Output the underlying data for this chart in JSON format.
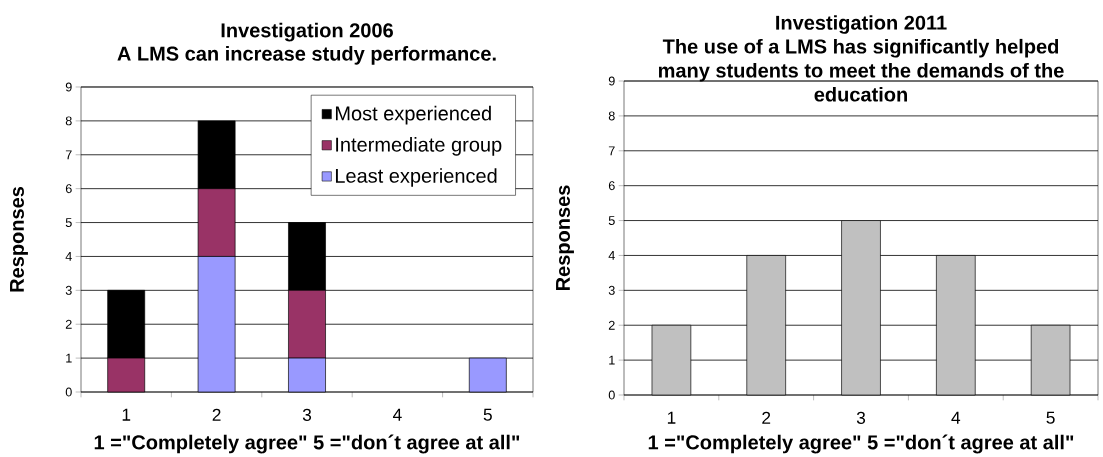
{
  "chart_data": [
    {
      "type": "bar",
      "stacked": true,
      "title": "Investigation 2006",
      "subtitle": "A LMS can increase study performance.",
      "xlabel": "1 =\"Completely agree\" 5 =\"don´t agree at all\"",
      "ylabel": "Responses",
      "categories": [
        "1",
        "2",
        "3",
        "4",
        "5"
      ],
      "series": [
        {
          "name": "Least experienced",
          "color": "#9999ff",
          "values": [
            0,
            4,
            1,
            0,
            1
          ]
        },
        {
          "name": "Intermediate group",
          "color": "#993366",
          "values": [
            1,
            2,
            2,
            0,
            0
          ]
        },
        {
          "name": "Most experienced",
          "color": "#000000",
          "values": [
            2,
            2,
            2,
            0,
            0
          ]
        }
      ],
      "ylim": [
        0,
        9
      ],
      "yticks": [
        0,
        1,
        2,
        3,
        4,
        5,
        6,
        7,
        8,
        9
      ],
      "grid": "y",
      "legend": "top right"
    },
    {
      "type": "bar",
      "title": "Investigation 2011",
      "subtitle": "The use of a LMS has significantly helped many students to meet the demands of the education",
      "xlabel": "1 =\"Completely agree\" 5 =\"don´t agree at all\"",
      "ylabel": "Responses",
      "categories": [
        "1",
        "2",
        "3",
        "4",
        "5"
      ],
      "values": [
        2,
        4,
        5,
        4,
        2
      ],
      "color": "#c0c0c0",
      "ylim": [
        0,
        9
      ],
      "yticks": [
        0,
        1,
        2,
        3,
        4,
        5,
        6,
        7,
        8,
        9
      ],
      "grid": "y"
    }
  ]
}
